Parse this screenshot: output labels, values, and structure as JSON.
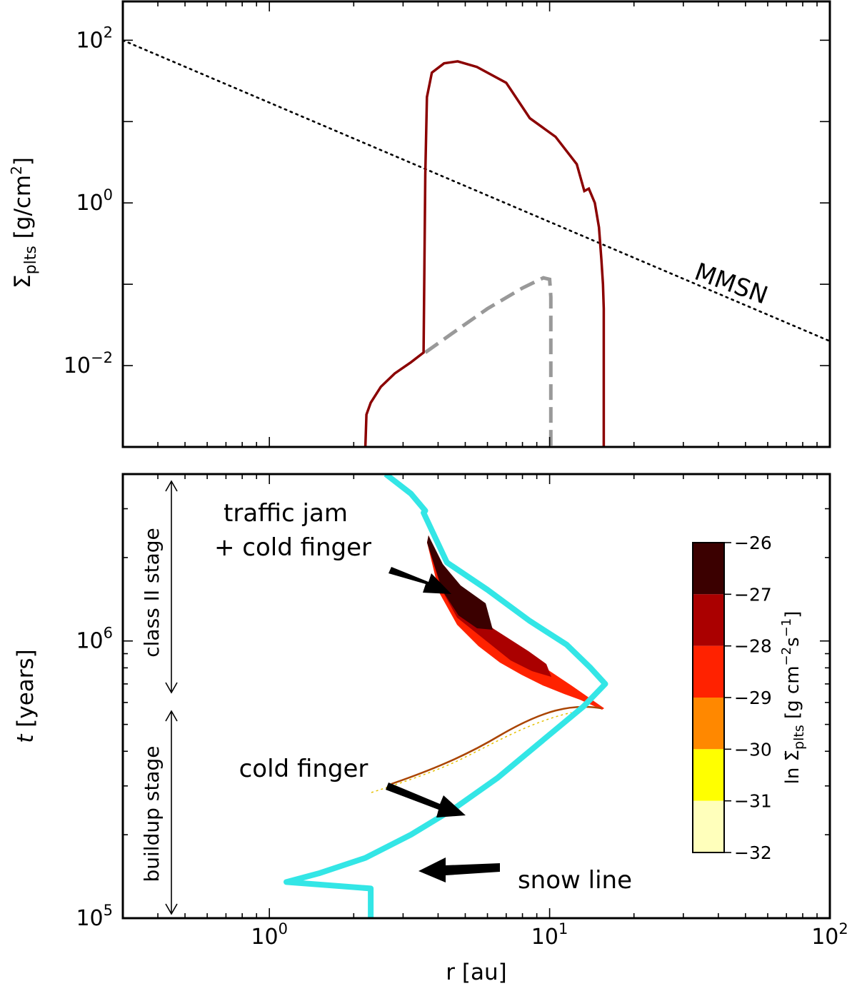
{
  "chart_data": [
    {
      "type": "line",
      "panel": "top",
      "xscale": "log",
      "yscale": "log",
      "xlim": [
        0.3,
        100
      ],
      "ylim": [
        0.001,
        300
      ],
      "ylabel": "Σ_plts [g/cm²]",
      "ylabel_main": "Σ",
      "ylabel_sub": "plts",
      "ylabel_unit": " [g/cm",
      "ylabel_unit_sup": "2",
      "ylabel_unit_end": "]",
      "yticks": [
        {
          "value": 0.01,
          "base": "10",
          "exp": "−2"
        },
        {
          "value": 1,
          "base": "10",
          "exp": "0"
        },
        {
          "value": 100,
          "base": "10",
          "exp": "2"
        }
      ],
      "series": [
        {
          "name": "MMSN",
          "style": "dotted",
          "color": "#000000",
          "x": [
            0.3,
            100
          ],
          "y": [
            100,
            0.02
          ]
        },
        {
          "style": "solid",
          "color": "#8b0000",
          "x": [
            2.2,
            2.22,
            2.3,
            2.5,
            2.8,
            3.2,
            3.55,
            3.6,
            3.65,
            3.8,
            4.2,
            4.7,
            5.5,
            7.0,
            8.5,
            10.5,
            12.5,
            13.3,
            13.8,
            14.5,
            15.0,
            15.3,
            15.5,
            15.6,
            15.6
          ],
          "y": [
            0.001,
            0.0025,
            0.0035,
            0.0055,
            0.008,
            0.011,
            0.0145,
            2.2,
            20,
            40,
            52,
            55,
            47,
            30,
            11,
            6.5,
            3.0,
            1.4,
            1.5,
            1.0,
            0.5,
            0.2,
            0.1,
            0.05,
            0.001
          ]
        },
        {
          "style": "dashed",
          "color": "#999999",
          "x": [
            3.6,
            4.5,
            6.0,
            8.0,
            9.5,
            10.0,
            10.1,
            10.1
          ],
          "y": [
            0.0145,
            0.025,
            0.05,
            0.09,
            0.12,
            0.115,
            0.07,
            0.001
          ]
        }
      ],
      "annotations": [
        {
          "text": "MMSN",
          "x": 40,
          "y": 0.055
        }
      ]
    },
    {
      "type": "heatmap",
      "panel": "bottom",
      "xscale": "log",
      "yscale": "log",
      "xlim": [
        0.3,
        100
      ],
      "ylim": [
        100000,
        4000000
      ],
      "xlabel": "r [au]",
      "ylabel_main": "t",
      "ylabel_unit": " [years]",
      "xticks": [
        {
          "value": 1,
          "base": "10",
          "exp": "0"
        },
        {
          "value": 10,
          "base": "10",
          "exp": "1"
        },
        {
          "value": 100,
          "base": "10",
          "exp": "2"
        }
      ],
      "yticks": [
        {
          "value": 100000,
          "base": "10",
          "exp": "5"
        },
        {
          "value": 1000000,
          "base": "10",
          "exp": "6"
        }
      ],
      "snow_line": {
        "color": "#33e6e6",
        "x": [
          2.3,
          2.3,
          2.3,
          1.15,
          1.5,
          2.2,
          3.2,
          4.6,
          6.5,
          9.5,
          13.2,
          15.8,
          14.0,
          11.5,
          8.5,
          6.0,
          4.3,
          3.55,
          3.6,
          3.2,
          2.6
        ],
        "t": [
          100000,
          125000,
          128000,
          135000,
          145000,
          165000,
          200000,
          250000,
          320000,
          440000,
          580000,
          700000,
          800000,
          970000,
          1180000,
          1530000,
          1920000,
          2900000,
          2950000,
          3400000,
          4000000
        ]
      },
      "colorbar": {
        "label_prefix": "ln ",
        "label_symbol": "Σ̇",
        "label_sub": "plts",
        "label_unit": " [g cm",
        "label_exp1": "−2",
        "label_mid": "s",
        "label_exp2": "−1",
        "label_end": "]",
        "ticks": [
          "−26",
          "−27",
          "−28",
          "−29",
          "−30",
          "−31",
          "−32"
        ],
        "levels": [
          {
            "from": -27,
            "to": -26,
            "color": "#3b0000"
          },
          {
            "from": -28,
            "to": -27,
            "color": "#aa0000"
          },
          {
            "from": -29,
            "to": -28,
            "color": "#ff2200"
          },
          {
            "from": -30,
            "to": -29,
            "color": "#ff8800"
          },
          {
            "from": -31,
            "to": -30,
            "color": "#ffff00"
          },
          {
            "from": -32,
            "to": -31,
            "color": "#ffffbb"
          }
        ]
      },
      "annotations": {
        "traffic_jam_line1": "traffic jam",
        "traffic_jam_line2": "+ cold finger",
        "cold_finger": "cold finger",
        "snow_line": "snow line",
        "class2_stage": "class II stage",
        "buildup_stage": "buildup stage"
      }
    }
  ]
}
